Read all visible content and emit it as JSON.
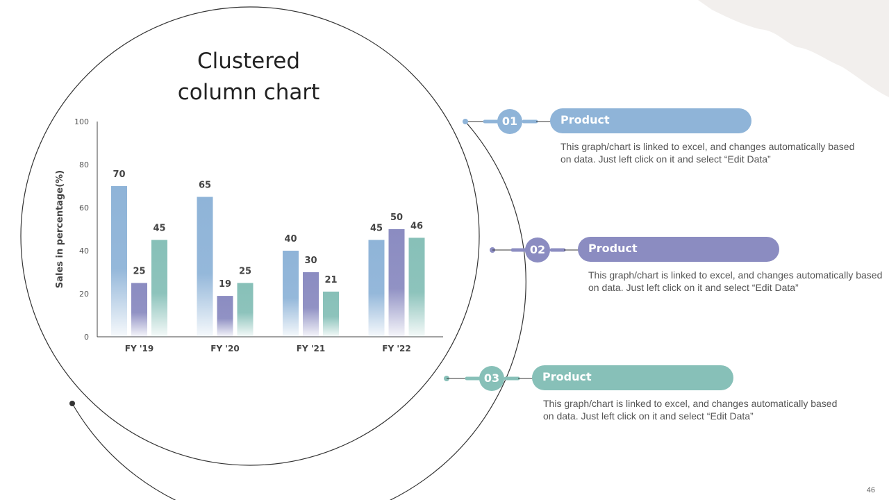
{
  "slide": {
    "title": "Clustered column chart",
    "page_number": "46"
  },
  "colors": {
    "series1": "#8fb4d8",
    "series2": "#8b8cc1",
    "series3": "#87c0b8",
    "text": "#555555"
  },
  "chart_data": {
    "type": "bar",
    "title": "Clustered column chart",
    "categories": [
      "FY '19",
      "FY '20",
      "FY '21",
      "FY '22"
    ],
    "series": [
      {
        "values": [
          70,
          65,
          40,
          45
        ]
      },
      {
        "values": [
          25,
          19,
          30,
          50
        ]
      },
      {
        "values": [
          45,
          25,
          21,
          46
        ]
      }
    ],
    "ylabel": "Sales in percentage(%)",
    "xlabel": "",
    "ylim": [
      0,
      100
    ],
    "yticks": [
      0,
      20,
      40,
      60,
      80,
      100
    ],
    "grid": false,
    "data_labels": true
  },
  "items": [
    {
      "number": "01",
      "label": "Product",
      "text": "This graph/chart is linked to excel, and changes automatically based on data. Just left click on it and select “Edit Data”"
    },
    {
      "number": "02",
      "label": "Product",
      "text": "This graph/chart is linked to excel, and changes automatically based on data. Just left click on it and select “Edit Data”"
    },
    {
      "number": "03",
      "label": "Product",
      "text": "This graph/chart is linked to excel, and changes automatically based on data. Just left click on it and select “Edit Data”"
    }
  ]
}
